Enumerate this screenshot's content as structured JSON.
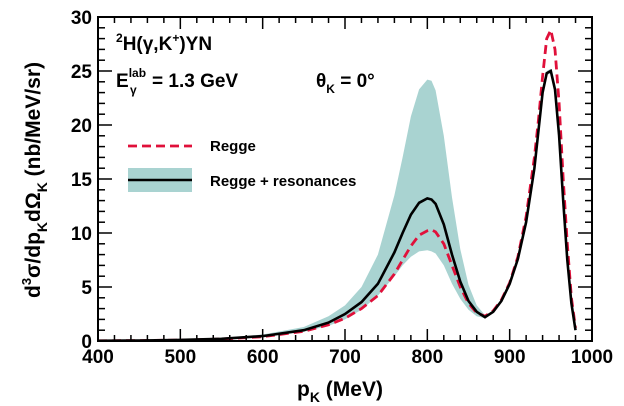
{
  "chart_data": {
    "type": "line",
    "xlim": [
      400,
      1000
    ],
    "ylim": [
      0,
      30
    ],
    "x_ticks": [
      "400",
      "500",
      "600",
      "700",
      "800",
      "900",
      "1000"
    ],
    "y_ticks": [
      "0",
      "5",
      "10",
      "15",
      "20",
      "25",
      "30"
    ],
    "xlabel": {
      "main": "p",
      "sub": "K",
      "rest": " (MeV)"
    },
    "ylabel": {
      "d": "d",
      "three": "3",
      "sigma": "σ/dp",
      "subK1": "K",
      "dOmega": "dΩ",
      "subK2": "K",
      "units": " (nb/MeV/sr)"
    },
    "annotations": {
      "reaction": {
        "pre": "2",
        "main": "H(γ,K",
        "sup": "+",
        "post": ")YN"
      },
      "energy": {
        "e": "E",
        "sub": "γ",
        "sup": "lab",
        "value": " = 1.3 GeV"
      },
      "angle": {
        "theta": "θ",
        "sub": "K",
        "value": " = 0°"
      }
    },
    "series": [
      {
        "name": "Regge",
        "color": "#e0103a",
        "style": "dashed",
        "x": [
          400,
          450,
          500,
          550,
          600,
          650,
          680,
          700,
          720,
          740,
          760,
          770,
          780,
          790,
          800,
          805,
          810,
          820,
          830,
          840,
          850,
          860,
          870,
          880,
          890,
          900,
          910,
          920,
          930,
          935,
          940,
          945,
          950,
          955,
          960,
          965,
          970,
          975,
          980
        ],
        "y": [
          0.02,
          0.04,
          0.08,
          0.18,
          0.4,
          0.9,
          1.5,
          2.1,
          3.0,
          4.2,
          6.2,
          7.5,
          8.8,
          9.8,
          10.2,
          10.3,
          10.1,
          9.0,
          7.0,
          5.0,
          3.5,
          2.6,
          2.3,
          2.8,
          3.8,
          5.4,
          7.8,
          11.5,
          17.0,
          20.5,
          24.5,
          28.0,
          28.8,
          27.0,
          22.0,
          15.0,
          9.0,
          4.0,
          1.2
        ]
      },
      {
        "name": "Regge + resonances",
        "color": "#000000",
        "style": "solid",
        "x": [
          400,
          450,
          500,
          550,
          600,
          650,
          680,
          700,
          720,
          740,
          760,
          770,
          780,
          790,
          800,
          805,
          810,
          820,
          830,
          840,
          850,
          860,
          870,
          880,
          890,
          900,
          910,
          920,
          930,
          935,
          940,
          945,
          950,
          955,
          960,
          965,
          970,
          975,
          980
        ],
        "y": [
          0.02,
          0.05,
          0.1,
          0.2,
          0.45,
          1.0,
          1.7,
          2.5,
          3.6,
          5.3,
          8.2,
          10.0,
          11.7,
          12.8,
          13.2,
          13.1,
          12.7,
          10.8,
          8.0,
          5.5,
          3.7,
          2.7,
          2.2,
          2.7,
          3.7,
          5.3,
          7.6,
          11.0,
          16.0,
          19.5,
          23.0,
          24.8,
          25.0,
          23.3,
          19.0,
          13.0,
          7.5,
          3.5,
          1.0
        ]
      }
    ],
    "band": {
      "name": "Regge + resonances",
      "color": "#a9d3d1",
      "x": [
        400,
        450,
        500,
        550,
        600,
        650,
        680,
        700,
        720,
        740,
        760,
        770,
        780,
        790,
        800,
        805,
        810,
        820,
        830,
        840,
        850,
        860,
        870,
        880,
        890,
        900,
        910,
        920,
        930,
        935,
        940,
        945,
        950,
        955,
        960,
        965,
        970,
        975,
        980
      ],
      "y_low": [
        0.01,
        0.03,
        0.08,
        0.17,
        0.38,
        0.85,
        1.4,
        2.0,
        2.9,
        4.2,
        6.0,
        7.0,
        7.8,
        8.3,
        8.4,
        8.3,
        8.1,
        7.0,
        5.3,
        3.9,
        2.9,
        2.3,
        2.1,
        2.6,
        3.6,
        5.2,
        7.5,
        10.9,
        15.8,
        19.3,
        22.8,
        24.6,
        24.8,
        23.1,
        18.8,
        12.8,
        7.3,
        3.4,
        0.9
      ],
      "y_high": [
        0.03,
        0.07,
        0.14,
        0.28,
        0.6,
        1.3,
        2.3,
        3.3,
        5.0,
        8.0,
        13.5,
        17.0,
        20.8,
        23.3,
        24.2,
        24.1,
        23.2,
        19.0,
        13.3,
        8.5,
        5.2,
        3.3,
        2.4,
        2.8,
        3.8,
        5.4,
        7.7,
        11.1,
        16.2,
        19.7,
        23.2,
        25.0,
        25.2,
        23.5,
        19.2,
        13.2,
        7.7,
        3.6,
        1.1
      ]
    }
  }
}
